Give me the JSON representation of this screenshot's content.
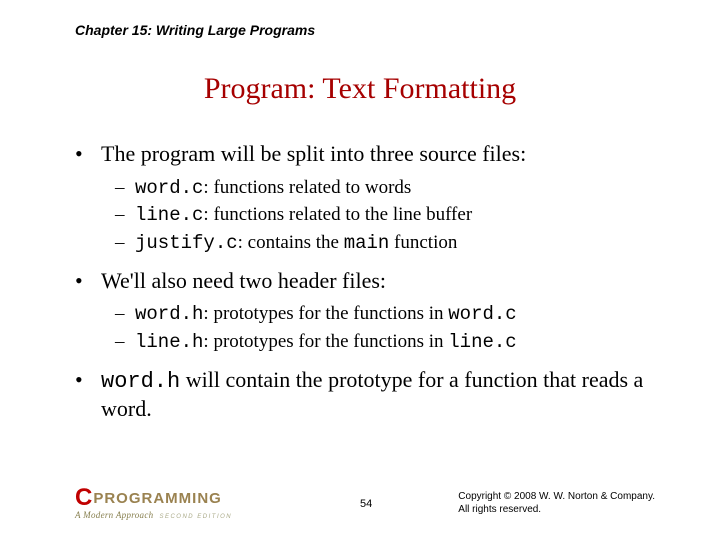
{
  "header": {
    "chapter": "Chapter 15: Writing Large Programs"
  },
  "title": "Program: Text Formatting",
  "bullets": {
    "b1": "The program will be split into three source files:",
    "b1a_code": "word.c",
    "b1a_rest": ": functions related to words",
    "b1b_code": "line.c",
    "b1b_rest": ": functions related to the line buffer",
    "b1c_code": "justify.c",
    "b1c_rest": ": contains the ",
    "b1c_code2": "main",
    "b1c_rest2": " function",
    "b2": "We'll also need two header files:",
    "b2a_code": "word.h",
    "b2a_rest": ": prototypes for the functions in ",
    "b2a_code2": "word.c",
    "b2b_code": "line.h",
    "b2b_rest": ": prototypes for the functions in ",
    "b2b_code2": "line.c",
    "b3_code": "word.h",
    "b3_rest": " will contain the prototype for a function that reads a word."
  },
  "footer": {
    "logo_c": "C",
    "logo_prog": "PROGRAMMING",
    "logo_sub": "A Modern Approach",
    "logo_ed": "SECOND EDITION",
    "page": "54",
    "copyright_l1": "Copyright © 2008 W. W. Norton & Company.",
    "copyright_l2": "All rights reserved."
  },
  "colors": {
    "title": "#a60000",
    "text": "#000000",
    "logo_c": "#c00000",
    "logo_prog": "#9a8250",
    "background": "#ffffff"
  },
  "fonts": {
    "body_family": "Times New Roman",
    "header_family": "Arial",
    "code_family": "Courier New",
    "title_size_pt": 22,
    "body_size_pt": 17,
    "sub_size_pt": 14
  }
}
